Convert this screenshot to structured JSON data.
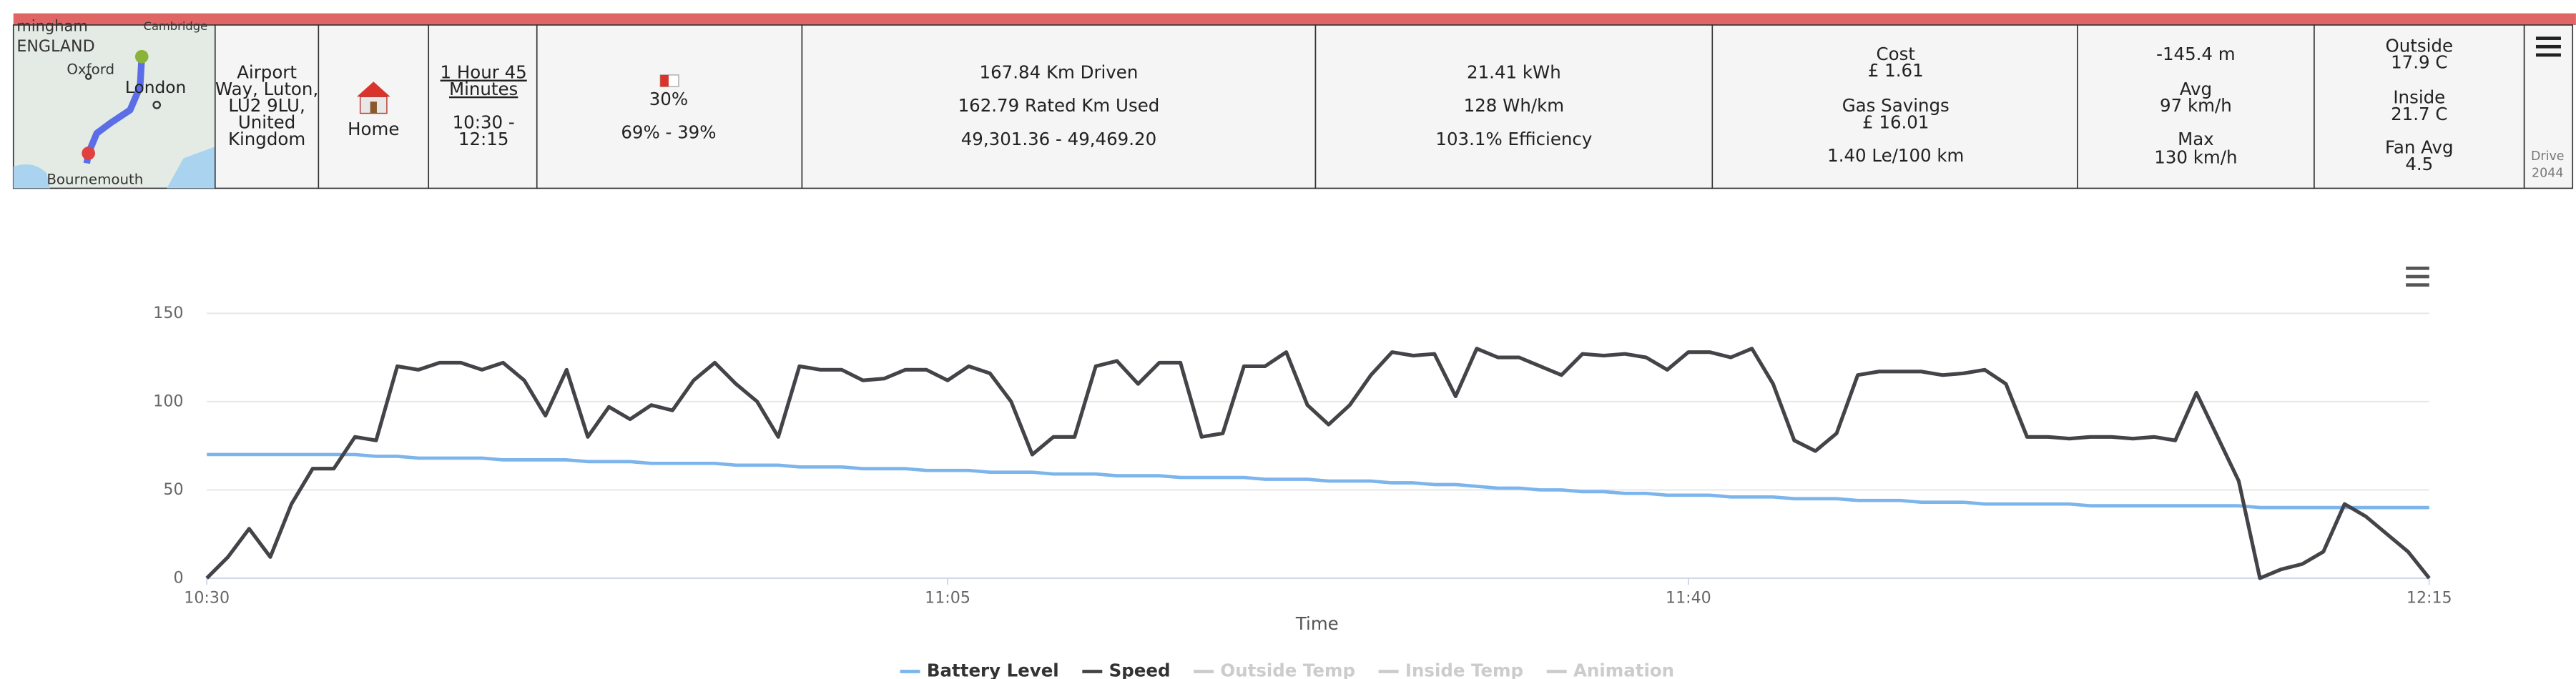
{
  "header": {
    "map": {
      "labels": [
        "mingham",
        "ENGLAND",
        "Oxford",
        "London",
        "Bournemouth",
        "Cambridge"
      ]
    },
    "address": [
      "Airport",
      "Way, Luton,",
      "LU2 9LU,",
      "United",
      "Kingdom"
    ],
    "place": "Home",
    "duration": [
      "1 Hour 45",
      "Minutes"
    ],
    "time_range": [
      "10:30 -",
      "12:15"
    ],
    "battery": {
      "level": "30%",
      "range": "69% - 39%"
    },
    "distance": [
      "167.84 Km Driven",
      "162.79 Rated Km Used",
      "49,301.36 - 49,469.20"
    ],
    "energy": [
      "21.41 kWh",
      "128 Wh/km",
      "103.1% Efficiency"
    ],
    "cost": [
      "Cost",
      "£ 1.61",
      "Gas Savings",
      "£ 16.01",
      "1.40 Le/100 km"
    ],
    "elevation_speed": [
      "-145.4 m",
      "Avg",
      "97 km/h",
      "Max",
      "130 km/h"
    ],
    "temps": [
      "Outside",
      "17.9 C",
      "Inside",
      "21.7 C",
      "Fan Avg",
      "4.5"
    ],
    "drive": [
      "Drive",
      "2044"
    ]
  },
  "chart_data": {
    "type": "line",
    "x_label": "Time",
    "x": [
      "10:30",
      "10:31",
      "10:32",
      "10:33",
      "10:34",
      "10:35",
      "10:36",
      "10:37",
      "10:38",
      "10:39",
      "10:40",
      "10:41",
      "10:42",
      "10:43",
      "10:44",
      "10:45",
      "10:46",
      "10:47",
      "10:48",
      "10:49",
      "10:50",
      "10:51",
      "10:52",
      "10:53",
      "10:54",
      "10:55",
      "10:56",
      "10:57",
      "10:58",
      "10:59",
      "11:00",
      "11:01",
      "11:02",
      "11:03",
      "11:04",
      "11:05",
      "11:06",
      "11:07",
      "11:08",
      "11:09",
      "11:10",
      "11:11",
      "11:12",
      "11:13",
      "11:14",
      "11:15",
      "11:16",
      "11:17",
      "11:18",
      "11:19",
      "11:20",
      "11:21",
      "11:22",
      "11:23",
      "11:24",
      "11:25",
      "11:26",
      "11:27",
      "11:28",
      "11:29",
      "11:30",
      "11:31",
      "11:32",
      "11:33",
      "11:34",
      "11:35",
      "11:36",
      "11:37",
      "11:38",
      "11:39",
      "11:40",
      "11:41",
      "11:42",
      "11:43",
      "11:44",
      "11:45",
      "11:46",
      "11:47",
      "11:48",
      "11:49",
      "11:50",
      "11:51",
      "11:52",
      "11:53",
      "11:54",
      "11:55",
      "11:56",
      "11:57",
      "11:58",
      "11:59",
      "12:00",
      "12:01",
      "12:02",
      "12:03",
      "12:04",
      "12:05",
      "12:06",
      "12:07",
      "12:08",
      "12:09",
      "12:10",
      "12:11",
      "12:12",
      "12:13",
      "12:14",
      "12:15"
    ],
    "xlim": [
      "10:30",
      "12:15"
    ],
    "xticks": [
      "10:30",
      "11:05",
      "11:40",
      "12:15"
    ],
    "ylim": [
      0,
      150
    ],
    "yticks": [
      0,
      50,
      100,
      150
    ],
    "grid": true,
    "series": [
      {
        "name": "Battery Level",
        "color": "#7cb5ec",
        "visible": true,
        "values": [
          70,
          70,
          70,
          70,
          70,
          70,
          70,
          70,
          69,
          69,
          68,
          68,
          68,
          68,
          67,
          67,
          67,
          67,
          66,
          66,
          66,
          65,
          65,
          65,
          65,
          64,
          64,
          64,
          63,
          63,
          63,
          62,
          62,
          62,
          61,
          61,
          61,
          60,
          60,
          60,
          59,
          59,
          59,
          58,
          58,
          58,
          57,
          57,
          57,
          57,
          56,
          56,
          56,
          55,
          55,
          55,
          54,
          54,
          53,
          53,
          52,
          51,
          51,
          50,
          50,
          49,
          49,
          48,
          48,
          47,
          47,
          47,
          46,
          46,
          46,
          45,
          45,
          45,
          44,
          44,
          44,
          43,
          43,
          43,
          42,
          42,
          42,
          42,
          42,
          41,
          41,
          41,
          41,
          41,
          41,
          41,
          41,
          40,
          40,
          40,
          40,
          40,
          40,
          40,
          40,
          40
        ]
      },
      {
        "name": "Speed",
        "color": "#434348",
        "visible": true,
        "values": [
          0,
          12,
          28,
          12,
          42,
          62,
          62,
          80,
          78,
          120,
          118,
          122,
          122,
          118,
          122,
          112,
          92,
          118,
          80,
          97,
          90,
          98,
          95,
          112,
          122,
          110,
          100,
          80,
          120,
          118,
          118,
          112,
          113,
          118,
          118,
          112,
          120,
          116,
          100,
          70,
          80,
          80,
          120,
          123,
          110,
          122,
          122,
          80,
          82,
          120,
          120,
          128,
          98,
          87,
          98,
          115,
          128,
          126,
          127,
          103,
          130,
          125,
          125,
          120,
          115,
          127,
          126,
          127,
          125,
          118,
          128,
          128,
          125,
          130,
          110,
          78,
          72,
          82,
          115,
          117,
          117,
          117,
          115,
          116,
          118,
          110,
          80,
          80,
          79,
          80,
          80,
          79,
          80,
          78,
          105,
          80,
          55,
          0,
          5,
          8,
          15,
          42,
          35,
          25,
          15,
          0
        ]
      },
      {
        "name": "Outside Temp",
        "color": "#cccccc",
        "visible": false
      },
      {
        "name": "Inside Temp",
        "color": "#cccccc",
        "visible": false
      },
      {
        "name": "Animation",
        "color": "#cccccc",
        "visible": false
      }
    ]
  }
}
